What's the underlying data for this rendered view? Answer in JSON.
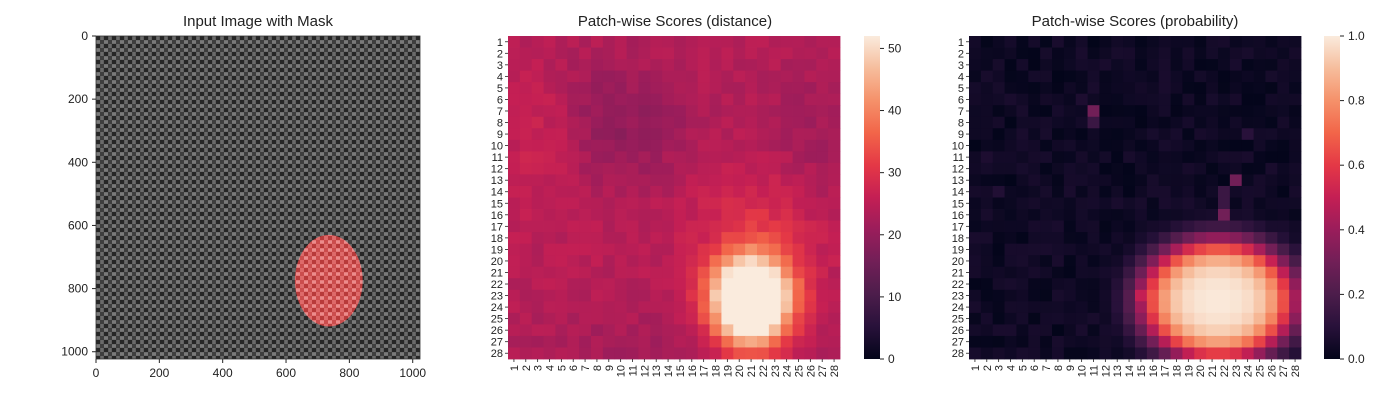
{
  "chart_data": [
    {
      "type": "image",
      "title": "Input Image with Mask",
      "xlabel": "",
      "ylabel": "",
      "xlim": [
        0,
        1023
      ],
      "ylim": [
        1023,
        0
      ],
      "xticks": [
        0,
        200,
        400,
        600,
        800,
        1000
      ],
      "yticks": [
        0,
        200,
        400,
        600,
        800,
        1000
      ],
      "texture": "woven burlap fabric, grey",
      "mask": {
        "shape": "ellipse",
        "center": [
          735,
          775
        ],
        "radius": [
          107,
          145
        ],
        "color": "#ff4d4d"
      }
    },
    {
      "type": "heatmap",
      "title": "Patch-wise Scores (distance)",
      "rows": 28,
      "cols": 28,
      "labels": [
        "1",
        "2",
        "3",
        "4",
        "5",
        "6",
        "7",
        "8",
        "9",
        "10",
        "11",
        "12",
        "13",
        "14",
        "15",
        "16",
        "17",
        "18",
        "19",
        "20",
        "21",
        "22",
        "23",
        "24",
        "25",
        "26",
        "27",
        "28"
      ],
      "colorbar": {
        "min": 0,
        "max": 52,
        "ticks": [
          0,
          10,
          20,
          30,
          40,
          50
        ],
        "colormap": "rocket"
      },
      "grid": false,
      "model": {
        "base": 24.5,
        "spots": [
          {
            "row": 23.5,
            "col": 21.0,
            "peak": 52,
            "sigma_row": 2.6,
            "sigma_col": 2.3
          },
          {
            "row": 17.5,
            "col": 22.5,
            "peak": 6,
            "sigma_row": 4.0,
            "sigma_col": 4.0
          },
          {
            "row": 9.0,
            "col": 3.5,
            "peak": 4.5,
            "sigma_row": 4.0,
            "sigma_col": 2.5
          },
          {
            "row": 8.0,
            "col": 9.0,
            "peak": -5,
            "sigma_row": 4.0,
            "sigma_col": 5.0
          },
          {
            "row": 12.0,
            "col": 26.0,
            "peak": -3,
            "sigma_row": 7.0,
            "sigma_col": 3.0
          },
          {
            "row": 28.0,
            "col": 14.0,
            "peak": -2.5,
            "sigma_row": 3.0,
            "sigma_col": 10.0
          }
        ]
      }
    },
    {
      "type": "heatmap",
      "title": "Patch-wise Scores (probability)",
      "rows": 28,
      "cols": 28,
      "labels": [
        "1",
        "2",
        "3",
        "4",
        "5",
        "6",
        "7",
        "8",
        "9",
        "10",
        "11",
        "12",
        "13",
        "14",
        "15",
        "16",
        "17",
        "18",
        "19",
        "20",
        "21",
        "22",
        "23",
        "24",
        "25",
        "26",
        "27",
        "28"
      ],
      "colorbar": {
        "min": 0.0,
        "max": 1.0,
        "ticks": [
          0.0,
          0.2,
          0.4,
          0.6,
          0.8,
          1.0
        ],
        "colormap": "rocket"
      },
      "grid": false,
      "model": {
        "blob": {
          "row": 23.4,
          "col": 21.5,
          "radius_row": 5.0,
          "radius_col": 6.2,
          "edge": 0.7
        },
        "spots": [
          {
            "row": 7,
            "col": 11,
            "value": 0.3
          },
          {
            "row": 8,
            "col": 11,
            "value": 0.15
          },
          {
            "row": 13,
            "col": 23,
            "value": 0.3
          },
          {
            "row": 14,
            "col": 22,
            "value": 0.15
          },
          {
            "row": 16,
            "col": 22,
            "value": 0.3
          },
          {
            "row": 15,
            "col": 22,
            "value": 0.15
          },
          {
            "row": 23,
            "col": 15,
            "value": 0.5
          },
          {
            "row": 22,
            "col": 15,
            "value": 0.3
          },
          {
            "row": 24,
            "col": 15,
            "value": 0.35
          },
          {
            "row": 27,
            "col": 19,
            "value": 0.55
          },
          {
            "row": 28,
            "col": 20,
            "value": 0.45
          },
          {
            "row": 27,
            "col": 22,
            "value": 0.5
          },
          {
            "row": 28,
            "col": 22,
            "value": 0.4
          },
          {
            "row": 27,
            "col": 24,
            "value": 0.4
          },
          {
            "row": 9,
            "col": 24,
            "value": 0.1
          },
          {
            "row": 14,
            "col": 3,
            "value": 0.08
          },
          {
            "row": 11,
            "col": 2,
            "value": 0.07
          },
          {
            "row": 6,
            "col": 10,
            "value": 0.07
          }
        ]
      }
    }
  ]
}
